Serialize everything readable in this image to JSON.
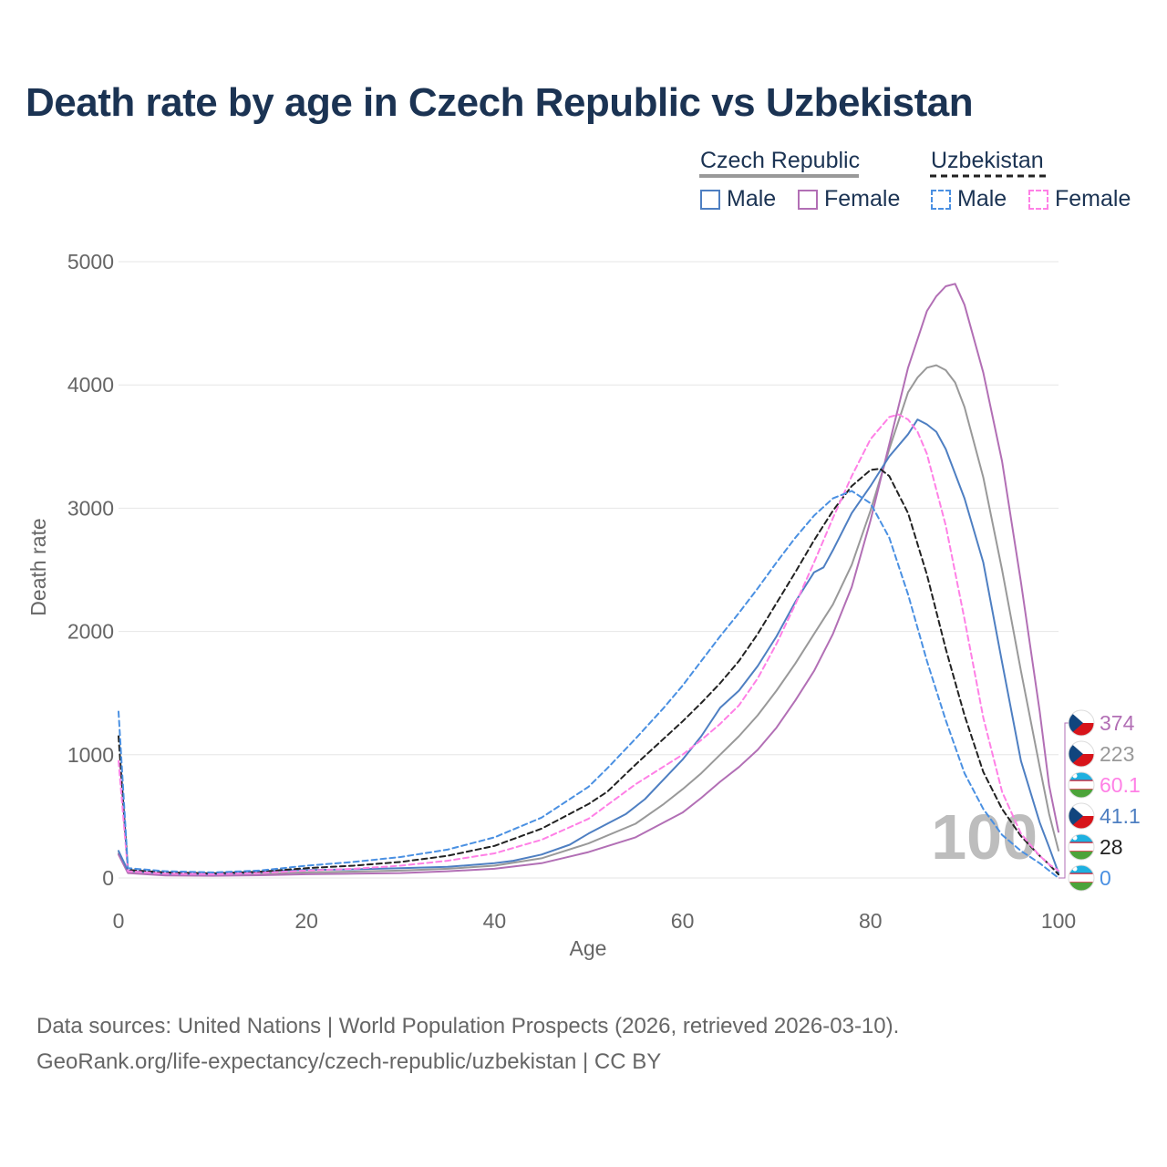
{
  "title": "Death rate by age in Czech Republic vs Uzbekistan",
  "legend": {
    "groups": [
      {
        "title": "Czech Republic",
        "style": "solid",
        "color": "#999999",
        "items": [
          {
            "label": "Male",
            "color": "#4e7fc2"
          },
          {
            "label": "Female",
            "color": "#b26fb5"
          }
        ]
      },
      {
        "title": "Uzbekistan",
        "style": "dashed",
        "color": "#222222",
        "items": [
          {
            "label": "Male",
            "color": "#4a90e2"
          },
          {
            "label": "Female",
            "color": "#ff80e6"
          }
        ]
      }
    ]
  },
  "chart_data": {
    "type": "line",
    "xlabel": "Age",
    "ylabel": "Death rate",
    "xlim": [
      0,
      100
    ],
    "ylim": [
      0,
      5000
    ],
    "xticks": [
      0,
      20,
      40,
      60,
      80,
      100
    ],
    "yticks": [
      0,
      1000,
      2000,
      3000,
      4000,
      5000
    ],
    "grid": true,
    "watermark": "100",
    "series": [
      {
        "name": "Czech Republic Male",
        "color": "#4e7fc2",
        "dash": false,
        "x": [
          0,
          1,
          5,
          10,
          15,
          17,
          20,
          25,
          30,
          35,
          40,
          42,
          45,
          48,
          50,
          52,
          54,
          56,
          58,
          60,
          62,
          64,
          66,
          68,
          70,
          72,
          74,
          75,
          76,
          78,
          80,
          82,
          84,
          85,
          86,
          87,
          88,
          90,
          92,
          94,
          96,
          98,
          99,
          100
        ],
        "y": [
          220,
          60,
          35,
          30,
          45,
          60,
          65,
          70,
          80,
          90,
          120,
          140,
          190,
          270,
          360,
          440,
          520,
          640,
          800,
          960,
          1150,
          1380,
          1520,
          1720,
          1960,
          2240,
          2480,
          2520,
          2660,
          2960,
          3180,
          3420,
          3600,
          3720,
          3680,
          3620,
          3480,
          3080,
          2560,
          1750,
          950,
          450,
          250,
          41.1
        ]
      },
      {
        "name": "Czech Republic Female",
        "color": "#b26fb5",
        "dash": false,
        "x": [
          0,
          1,
          5,
          10,
          15,
          20,
          25,
          30,
          35,
          40,
          45,
          50,
          55,
          60,
          62,
          64,
          66,
          68,
          70,
          72,
          74,
          76,
          78,
          80,
          82,
          84,
          86,
          87,
          88,
          89,
          90,
          92,
          94,
          96,
          98,
          99,
          100
        ],
        "y": [
          190,
          40,
          20,
          18,
          22,
          30,
          35,
          40,
          55,
          75,
          120,
          210,
          330,
          530,
          650,
          780,
          900,
          1040,
          1220,
          1440,
          1680,
          1980,
          2360,
          2900,
          3520,
          4140,
          4600,
          4720,
          4800,
          4820,
          4650,
          4100,
          3380,
          2400,
          1350,
          750,
          374
        ]
      },
      {
        "name": "Czech Republic Total",
        "color": "#999999",
        "dash": false,
        "x": [
          0,
          1,
          5,
          10,
          15,
          20,
          25,
          30,
          35,
          40,
          45,
          50,
          55,
          58,
          60,
          62,
          64,
          66,
          68,
          70,
          72,
          74,
          76,
          78,
          80,
          82,
          84,
          85,
          86,
          87,
          88,
          89,
          90,
          92,
          94,
          96,
          98,
          99,
          100
        ],
        "y": [
          200,
          50,
          28,
          25,
          35,
          45,
          52,
          60,
          75,
          100,
          160,
          280,
          440,
          600,
          720,
          850,
          1000,
          1150,
          1320,
          1520,
          1740,
          1980,
          2220,
          2540,
          2980,
          3480,
          3940,
          4060,
          4140,
          4160,
          4120,
          4020,
          3820,
          3250,
          2500,
          1680,
          900,
          520,
          223
        ]
      },
      {
        "name": "Uzbekistan Male",
        "color": "#4a90e2",
        "dash": true,
        "x": [
          0,
          1,
          5,
          10,
          15,
          20,
          25,
          30,
          35,
          40,
          45,
          50,
          52,
          55,
          58,
          60,
          62,
          64,
          66,
          68,
          70,
          72,
          74,
          76,
          78,
          80,
          82,
          84,
          86,
          88,
          90,
          92,
          94,
          96,
          98,
          99,
          100
        ],
        "y": [
          1350,
          80,
          55,
          45,
          60,
          100,
          130,
          170,
          230,
          330,
          490,
          740,
          890,
          1130,
          1380,
          1560,
          1760,
          1960,
          2150,
          2350,
          2560,
          2760,
          2940,
          3080,
          3140,
          3040,
          2760,
          2300,
          1760,
          1280,
          850,
          560,
          350,
          220,
          120,
          60,
          0
        ]
      },
      {
        "name": "Uzbekistan Female",
        "color": "#ff80e6",
        "dash": true,
        "x": [
          0,
          1,
          5,
          10,
          15,
          20,
          25,
          30,
          35,
          40,
          45,
          50,
          55,
          60,
          62,
          64,
          66,
          68,
          70,
          72,
          74,
          76,
          78,
          80,
          82,
          83,
          84,
          85,
          86,
          88,
          90,
          92,
          94,
          96,
          98,
          99,
          100
        ],
        "y": [
          950,
          55,
          35,
          30,
          40,
          60,
          75,
          100,
          140,
          200,
          310,
          480,
          760,
          1000,
          1120,
          1250,
          1400,
          1620,
          1900,
          2220,
          2560,
          2920,
          3260,
          3560,
          3740,
          3760,
          3720,
          3620,
          3440,
          2860,
          2100,
          1300,
          700,
          360,
          180,
          110,
          60.1
        ]
      },
      {
        "name": "Uzbekistan Total",
        "color": "#222222",
        "dash": true,
        "x": [
          0,
          1,
          5,
          10,
          15,
          20,
          25,
          30,
          35,
          40,
          45,
          50,
          52,
          55,
          58,
          60,
          62,
          64,
          66,
          68,
          70,
          72,
          74,
          76,
          78,
          80,
          81,
          82,
          84,
          86,
          88,
          90,
          92,
          94,
          96,
          98,
          99,
          100
        ],
        "y": [
          1150,
          65,
          45,
          38,
          50,
          80,
          100,
          130,
          180,
          260,
          400,
          600,
          700,
          920,
          1130,
          1270,
          1420,
          1580,
          1760,
          1980,
          2230,
          2480,
          2740,
          2980,
          3180,
          3310,
          3320,
          3260,
          2960,
          2460,
          1860,
          1320,
          860,
          560,
          340,
          180,
          110,
          28
        ]
      }
    ],
    "end_labels": [
      {
        "value": "374",
        "color": "#b26fb5",
        "flag": "Czech Republic"
      },
      {
        "value": "223",
        "color": "#999999",
        "flag": "Czech Republic"
      },
      {
        "value": "60.1",
        "color": "#ff80e6",
        "flag": "Uzbekistan"
      },
      {
        "value": "41.1",
        "color": "#4e7fc2",
        "flag": "Czech Republic"
      },
      {
        "value": "28",
        "color": "#222222",
        "flag": "Uzbekistan"
      },
      {
        "value": "0",
        "color": "#4a90e2",
        "flag": "Uzbekistan"
      }
    ]
  },
  "footer": {
    "line1": "Data sources: United Nations | World Population Prospects (2026, retrieved 2026-03-10).",
    "line2": "GeoRank.org/life-expectancy/czech-republic/uzbekistan | CC BY"
  }
}
